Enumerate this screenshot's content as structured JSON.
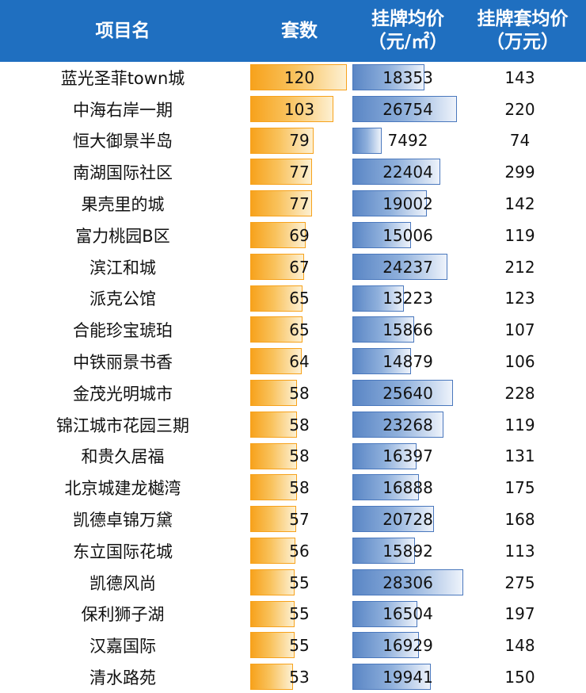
{
  "chart_data": {
    "type": "table",
    "columns": [
      "项目名",
      "套数",
      [
        "挂牌均价",
        "（元/㎡）"
      ],
      [
        "挂牌套均价",
        "（万元）"
      ]
    ],
    "rows": [
      {
        "name": "蓝光圣菲town城",
        "count": 120,
        "avg_price": 18353,
        "avg_total": 143
      },
      {
        "name": "中海右岸一期",
        "count": 103,
        "avg_price": 26754,
        "avg_total": 220
      },
      {
        "name": "恒大御景半岛",
        "count": 79,
        "avg_price": 7492,
        "avg_total": 74
      },
      {
        "name": "南湖国际社区",
        "count": 77,
        "avg_price": 22404,
        "avg_total": 299
      },
      {
        "name": "果壳里的城",
        "count": 77,
        "avg_price": 19002,
        "avg_total": 142
      },
      {
        "name": "富力桃园B区",
        "count": 69,
        "avg_price": 15006,
        "avg_total": 119
      },
      {
        "name": "滨江和城",
        "count": 67,
        "avg_price": 24237,
        "avg_total": 212
      },
      {
        "name": "派克公馆",
        "count": 65,
        "avg_price": 13223,
        "avg_total": 123
      },
      {
        "name": "合能珍宝琥珀",
        "count": 65,
        "avg_price": 15866,
        "avg_total": 107
      },
      {
        "name": "中铁丽景书香",
        "count": 64,
        "avg_price": 14879,
        "avg_total": 106
      },
      {
        "name": "金茂光明城市",
        "count": 58,
        "avg_price": 25640,
        "avg_total": 228
      },
      {
        "name": "锦江城市花园三期",
        "count": 58,
        "avg_price": 23268,
        "avg_total": 119
      },
      {
        "name": "和贵久居福",
        "count": 58,
        "avg_price": 16397,
        "avg_total": 131
      },
      {
        "name": "北京城建龙樾湾",
        "count": 58,
        "avg_price": 16888,
        "avg_total": 175
      },
      {
        "name": "凯德卓锦万黛",
        "count": 57,
        "avg_price": 20728,
        "avg_total": 168
      },
      {
        "name": "东立国际花城",
        "count": 56,
        "avg_price": 15892,
        "avg_total": 113
      },
      {
        "name": "凯德风尚",
        "count": 55,
        "avg_price": 28306,
        "avg_total": 275
      },
      {
        "name": "保利狮子湖",
        "count": 55,
        "avg_price": 16504,
        "avg_total": 197
      },
      {
        "name": "汉嘉国际",
        "count": 55,
        "avg_price": 16929,
        "avg_total": 148
      },
      {
        "name": "清水路苑",
        "count": 53,
        "avg_price": 19941,
        "avg_total": 150
      }
    ]
  },
  "colors": {
    "header_bg": "#1f6fc0",
    "count_bar": "#f7a21c",
    "price_bar": "#4a78bd"
  }
}
